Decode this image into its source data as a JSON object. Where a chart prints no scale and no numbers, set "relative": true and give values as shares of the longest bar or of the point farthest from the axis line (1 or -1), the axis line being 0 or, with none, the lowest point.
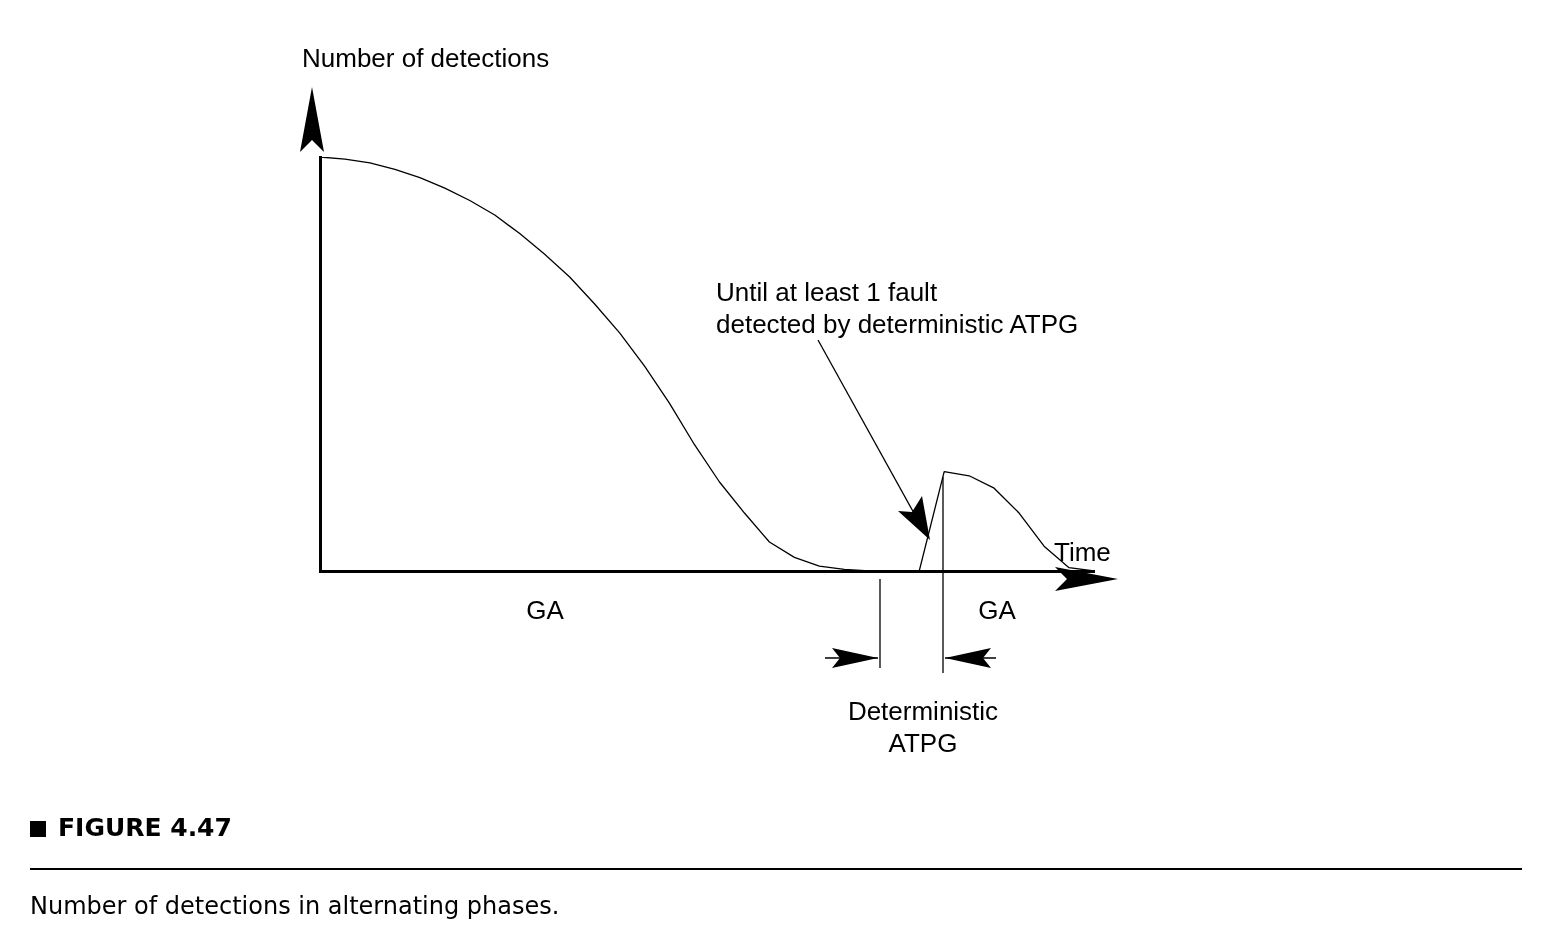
{
  "chart_data": {
    "type": "line",
    "relative": true,
    "title": "FIGURE 4.47",
    "ylabel": "Number of detections",
    "xlabel": "Time",
    "marker": "none",
    "color": "#000000",
    "categories": [
      null,
      null,
      null,
      null,
      null,
      null,
      null,
      null,
      null,
      null,
      null,
      null,
      null,
      null,
      null,
      null,
      null,
      null,
      null,
      null,
      null,
      null,
      null,
      null,
      null,
      null,
      null,
      null,
      null,
      null,
      null,
      null
    ],
    "values": [
      1.0,
      0.995,
      0.986,
      0.97,
      0.95,
      0.925,
      0.895,
      0.86,
      0.815,
      0.765,
      0.71,
      0.645,
      0.575,
      0.495,
      0.405,
      0.305,
      0.215,
      0.14,
      0.07,
      0.033,
      0.012,
      0.004,
      0,
      0,
      0,
      0.24,
      0.23,
      0.2,
      0.14,
      0.06,
      0.008,
      0
    ],
    "annotations": [
      "Until at least 1 fault\ndetected by deterministic ATPG",
      "GA",
      "GA",
      "Deterministic\nATPG",
      "Number of detections in alternating phases."
    ]
  }
}
